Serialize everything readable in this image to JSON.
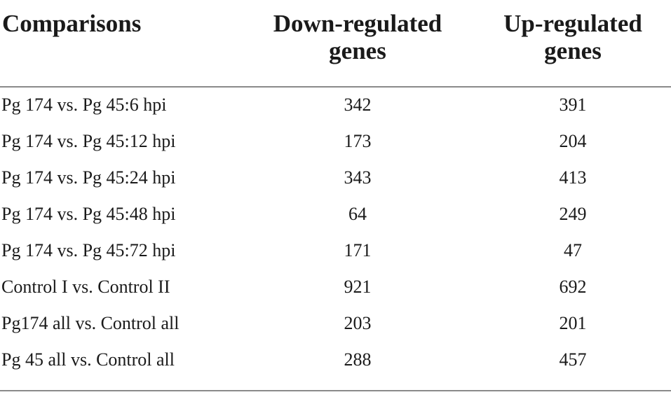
{
  "table": {
    "headers": [
      "Comparisons",
      "Down-regulated\ngenes",
      "Up-regulated\ngenes"
    ],
    "rows": [
      [
        "Pg 174 vs. Pg 45:6 hpi",
        "342",
        "391"
      ],
      [
        "Pg 174 vs. Pg 45:12 hpi",
        "173",
        "204"
      ],
      [
        "Pg 174 vs. Pg 45:24 hpi",
        "343",
        "413"
      ],
      [
        "Pg 174 vs. Pg 45:48 hpi",
        "64",
        "249"
      ],
      [
        "Pg 174 vs. Pg 45:72 hpi",
        "171",
        "47"
      ],
      [
        "Control I vs. Control II",
        "921",
        "692"
      ],
      [
        "Pg174 all vs. Control all",
        "203",
        "201"
      ],
      [
        "Pg 45 all vs. Control all",
        "288",
        "457"
      ]
    ]
  }
}
